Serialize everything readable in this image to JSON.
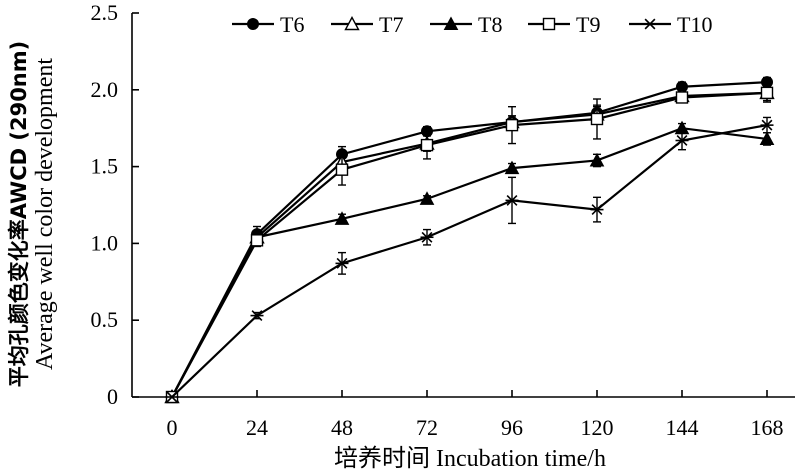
{
  "chart_data": {
    "type": "line",
    "xlabel": "培养时间 Incubation time/h",
    "ylabel_line1": "平均孔颜色变化率AWCD (290nm)",
    "ylabel_line2": "Average well color development",
    "x": [
      0,
      24,
      48,
      72,
      96,
      120,
      144,
      168
    ],
    "x_tick_labels": [
      "0",
      "24",
      "48",
      "72",
      "96",
      "120",
      "144",
      "168"
    ],
    "ylim": [
      0,
      2.5
    ],
    "y_ticks": [
      0,
      0.5,
      1.0,
      1.5,
      2.0,
      2.5
    ],
    "y_tick_labels": [
      "0",
      "0.5",
      "1.0",
      "1.5",
      "2.0",
      "2.5"
    ],
    "grid": false,
    "legend_position": "top",
    "series": [
      {
        "name": "T6",
        "marker": "filled-circle",
        "values": [
          0,
          1.06,
          1.58,
          1.73,
          1.79,
          1.85,
          2.02,
          2.05
        ],
        "errors": [
          0,
          0.05,
          0.05,
          0.03,
          0.04,
          0.04,
          0.03,
          0.03
        ]
      },
      {
        "name": "T7",
        "marker": "open-triangle",
        "values": [
          0,
          1.04,
          1.53,
          1.65,
          1.79,
          1.84,
          1.96,
          1.98
        ],
        "errors": [
          0,
          0.04,
          0.05,
          0.05,
          0.04,
          0.06,
          0.04,
          0.05
        ]
      },
      {
        "name": "T8",
        "marker": "filled-triangle",
        "values": [
          0,
          1.04,
          1.16,
          1.29,
          1.49,
          1.54,
          1.75,
          1.68
        ],
        "errors": [
          0,
          0.03,
          0.03,
          0.02,
          0.03,
          0.04,
          0.03,
          0.04
        ]
      },
      {
        "name": "T9",
        "marker": "open-square",
        "values": [
          0,
          1.02,
          1.48,
          1.64,
          1.77,
          1.81,
          1.95,
          1.98
        ],
        "errors": [
          0,
          0.04,
          0.1,
          0.09,
          0.12,
          0.13,
          0.03,
          0.06
        ]
      },
      {
        "name": "T10",
        "marker": "asterisk",
        "values": [
          0,
          0.53,
          0.87,
          1.04,
          1.28,
          1.22,
          1.67,
          1.77
        ],
        "errors": [
          0,
          0.02,
          0.07,
          0.05,
          0.15,
          0.08,
          0.06,
          0.05
        ]
      }
    ]
  }
}
